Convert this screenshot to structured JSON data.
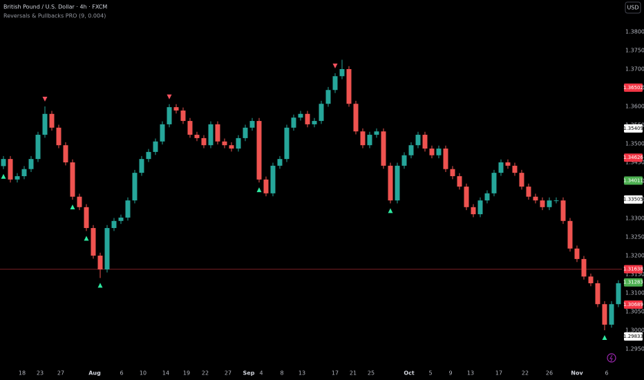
{
  "chart_data": {
    "type": "candlestick",
    "title": "British Pound / U.S. Dollar · 4h · FXCM",
    "subtitle": "Reversals & Pullbacks PRO (9, 0.004)",
    "currency": "USD",
    "up_color": "#26a69a",
    "down_color": "#ef5350",
    "xlim": [
      0,
      90
    ],
    "ylim": [
      1.29093,
      1.38852
    ],
    "yticks": [
      {
        "value": 1.295,
        "label": "1.29500"
      },
      {
        "value": 1.3,
        "label": "1.30000"
      },
      {
        "value": 1.305,
        "label": "1.30500"
      },
      {
        "value": 1.31,
        "label": "1.31000"
      },
      {
        "value": 1.315,
        "label": "1.31500"
      },
      {
        "value": 1.32,
        "label": "1.32000"
      },
      {
        "value": 1.325,
        "label": "1.32500"
      },
      {
        "value": 1.33,
        "label": "1.33000"
      },
      {
        "value": 1.335,
        "label": "1.33500"
      },
      {
        "value": 1.34,
        "label": "1.34000"
      },
      {
        "value": 1.345,
        "label": "1.34500"
      },
      {
        "value": 1.35,
        "label": "1.35000"
      },
      {
        "value": 1.355,
        "label": "1.35500"
      },
      {
        "value": 1.36,
        "label": "1.36000"
      },
      {
        "value": 1.365,
        "label": "1.36500"
      },
      {
        "value": 1.37,
        "label": "1.37000"
      },
      {
        "value": 1.375,
        "label": "1.37500"
      },
      {
        "value": 1.38,
        "label": "1.38000"
      }
    ],
    "xticks": [
      {
        "value": 3.2,
        "label": "18"
      },
      {
        "value": 5.8,
        "label": "23"
      },
      {
        "value": 8.8,
        "label": "27"
      },
      {
        "value": 13.7,
        "label": "Aug"
      },
      {
        "value": 17.6,
        "label": "6"
      },
      {
        "value": 20.7,
        "label": "10"
      },
      {
        "value": 24.0,
        "label": "14"
      },
      {
        "value": 27.0,
        "label": "19"
      },
      {
        "value": 29.7,
        "label": "22"
      },
      {
        "value": 33.0,
        "label": "27"
      },
      {
        "value": 36.0,
        "label": "Sep"
      },
      {
        "value": 37.8,
        "label": "4"
      },
      {
        "value": 40.8,
        "label": "8"
      },
      {
        "value": 43.7,
        "label": "13"
      },
      {
        "value": 48.5,
        "label": "17"
      },
      {
        "value": 51.1,
        "label": "21"
      },
      {
        "value": 53.7,
        "label": "25"
      },
      {
        "value": 59.2,
        "label": "Oct"
      },
      {
        "value": 62.3,
        "label": "5"
      },
      {
        "value": 65.2,
        "label": "9"
      },
      {
        "value": 68.1,
        "label": "13"
      },
      {
        "value": 72.2,
        "label": "17"
      },
      {
        "value": 76.0,
        "label": "22"
      },
      {
        "value": 79.5,
        "label": "26"
      },
      {
        "value": 83.5,
        "label": "Nov"
      },
      {
        "value": 87.8,
        "label": "6"
      }
    ],
    "open": [
      1.344,
      1.3459,
      1.3404,
      1.3413,
      1.3432,
      1.3459,
      1.3524,
      1.358,
      1.3543,
      1.3496,
      1.345,
      1.3358,
      1.333,
      1.3274,
      1.32,
      1.3163,
      1.3274,
      1.3293,
      1.3302,
      1.3348,
      1.3422,
      1.3459,
      1.3478,
      1.3506,
      1.3552,
      1.3598,
      1.3589,
      1.3561,
      1.3524,
      1.3515,
      1.3496,
      1.3552,
      1.3506,
      1.3496,
      1.3487,
      1.3515,
      1.3543,
      1.3561,
      1.3404,
      1.3367,
      1.3441,
      1.3459,
      1.3543,
      1.357,
      1.358,
      1.3552,
      1.3561,
      1.3607,
      1.3644,
      1.3681,
      1.37,
      1.3607,
      1.3533,
      1.3496,
      1.3524,
      1.3533,
      1.3441,
      1.3348,
      1.3441,
      1.3469,
      1.3496,
      1.3524,
      1.3487,
      1.3469,
      1.3487,
      1.3432,
      1.3413,
      1.3385,
      1.333,
      1.3311,
      1.3348,
      1.3367,
      1.3422,
      1.345,
      1.3441,
      1.3422,
      1.3385,
      1.3358,
      1.3348,
      1.333,
      1.3348,
      1.3348,
      1.3293,
      1.3219,
      1.3191,
      1.3144,
      1.3126,
      1.307,
      1.3015,
      1.307
    ],
    "high": [
      1.3467,
      1.3467,
      1.3421,
      1.344,
      1.3467,
      1.3532,
      1.36,
      1.3588,
      1.3551,
      1.3504,
      1.3458,
      1.3366,
      1.3338,
      1.3282,
      1.3208,
      1.3282,
      1.3301,
      1.331,
      1.3356,
      1.343,
      1.3467,
      1.3486,
      1.3514,
      1.356,
      1.3606,
      1.3606,
      1.3597,
      1.3569,
      1.3532,
      1.3523,
      1.356,
      1.356,
      1.3514,
      1.3504,
      1.3523,
      1.3551,
      1.3569,
      1.3569,
      1.3412,
      1.3449,
      1.3467,
      1.3551,
      1.3578,
      1.3588,
      1.3588,
      1.3569,
      1.3615,
      1.3652,
      1.3689,
      1.3725,
      1.3708,
      1.3615,
      1.3541,
      1.3532,
      1.3541,
      1.3541,
      1.3449,
      1.3449,
      1.3477,
      1.3504,
      1.3532,
      1.3532,
      1.3495,
      1.3495,
      1.3495,
      1.344,
      1.3421,
      1.3393,
      1.3338,
      1.3356,
      1.3375,
      1.343,
      1.3458,
      1.3458,
      1.3449,
      1.343,
      1.3393,
      1.3366,
      1.3356,
      1.3356,
      1.3356,
      1.3356,
      1.3301,
      1.3227,
      1.3199,
      1.3152,
      1.3134,
      1.3078,
      1.3078,
      1.3134
    ],
    "low": [
      1.3432,
      1.3396,
      1.3396,
      1.3405,
      1.3424,
      1.3451,
      1.3516,
      1.3535,
      1.3488,
      1.3442,
      1.335,
      1.3322,
      1.3266,
      1.3192,
      1.314,
      1.3155,
      1.3266,
      1.3285,
      1.3294,
      1.334,
      1.3414,
      1.3451,
      1.347,
      1.3498,
      1.3544,
      1.3581,
      1.3553,
      1.3516,
      1.3507,
      1.3488,
      1.3488,
      1.3498,
      1.3488,
      1.3479,
      1.3479,
      1.3507,
      1.3535,
      1.3396,
      1.3359,
      1.3359,
      1.3433,
      1.3451,
      1.3535,
      1.3562,
      1.3544,
      1.3544,
      1.3553,
      1.3599,
      1.3636,
      1.3673,
      1.3599,
      1.3525,
      1.3488,
      1.3488,
      1.3516,
      1.3433,
      1.334,
      1.334,
      1.3433,
      1.3461,
      1.3488,
      1.3479,
      1.3461,
      1.3461,
      1.3424,
      1.3405,
      1.3377,
      1.3322,
      1.3303,
      1.3303,
      1.334,
      1.3359,
      1.3414,
      1.3433,
      1.3414,
      1.3377,
      1.335,
      1.334,
      1.3322,
      1.3322,
      1.334,
      1.3285,
      1.3211,
      1.3183,
      1.3136,
      1.3118,
      1.3062,
      1.3,
      1.3007,
      1.3062
    ],
    "close": [
      1.3459,
      1.3404,
      1.3413,
      1.3432,
      1.3459,
      1.3524,
      1.358,
      1.3543,
      1.3496,
      1.345,
      1.3358,
      1.333,
      1.3274,
      1.32,
      1.3163,
      1.3274,
      1.3293,
      1.3302,
      1.3348,
      1.3422,
      1.3459,
      1.3478,
      1.3506,
      1.3552,
      1.3598,
      1.3589,
      1.3561,
      1.3524,
      1.3515,
      1.3496,
      1.3552,
      1.3506,
      1.3496,
      1.3487,
      1.3515,
      1.3543,
      1.3561,
      1.3404,
      1.3367,
      1.3441,
      1.3459,
      1.3543,
      1.357,
      1.358,
      1.3552,
      1.3561,
      1.3607,
      1.3644,
      1.3681,
      1.37,
      1.3607,
      1.3533,
      1.3496,
      1.3524,
      1.3533,
      1.3441,
      1.3348,
      1.3441,
      1.3469,
      1.3496,
      1.3524,
      1.3487,
      1.3469,
      1.3487,
      1.3432,
      1.3413,
      1.3385,
      1.333,
      1.3311,
      1.3348,
      1.3367,
      1.3422,
      1.345,
      1.3441,
      1.3422,
      1.3385,
      1.3358,
      1.3348,
      1.333,
      1.3348,
      1.3348,
      1.3293,
      1.3219,
      1.3191,
      1.3144,
      1.3126,
      1.307,
      1.3015,
      1.307,
      1.3126
    ],
    "signals": [
      {
        "candle": 6,
        "direction": "down"
      },
      {
        "candle": 24,
        "direction": "down"
      },
      {
        "candle": 48,
        "direction": "down"
      },
      {
        "candle": 0,
        "direction": "up"
      },
      {
        "candle": 10,
        "direction": "up"
      },
      {
        "candle": 12,
        "direction": "up"
      },
      {
        "candle": 14,
        "direction": "up"
      },
      {
        "candle": 37,
        "direction": "up"
      },
      {
        "candle": 56,
        "direction": "up"
      },
      {
        "candle": 87,
        "direction": "up"
      }
    ],
    "price_labels": [
      {
        "value": 1.36502,
        "color": "#f23645"
      },
      {
        "value": 1.35409,
        "color": "#ffffff"
      },
      {
        "value": 1.34626,
        "color": "#f23645"
      },
      {
        "value": 1.34011,
        "color": "#4caf50"
      },
      {
        "value": 1.33505,
        "color": "#ffffff"
      },
      {
        "value": 1.31638,
        "color": "#f23645"
      },
      {
        "value": 1.31283,
        "color": "#4caf50"
      },
      {
        "value": 1.30689,
        "color": "#f23645"
      },
      {
        "value": 1.29833,
        "color": "#ffffff"
      }
    ],
    "price_line": 1.31638
  }
}
